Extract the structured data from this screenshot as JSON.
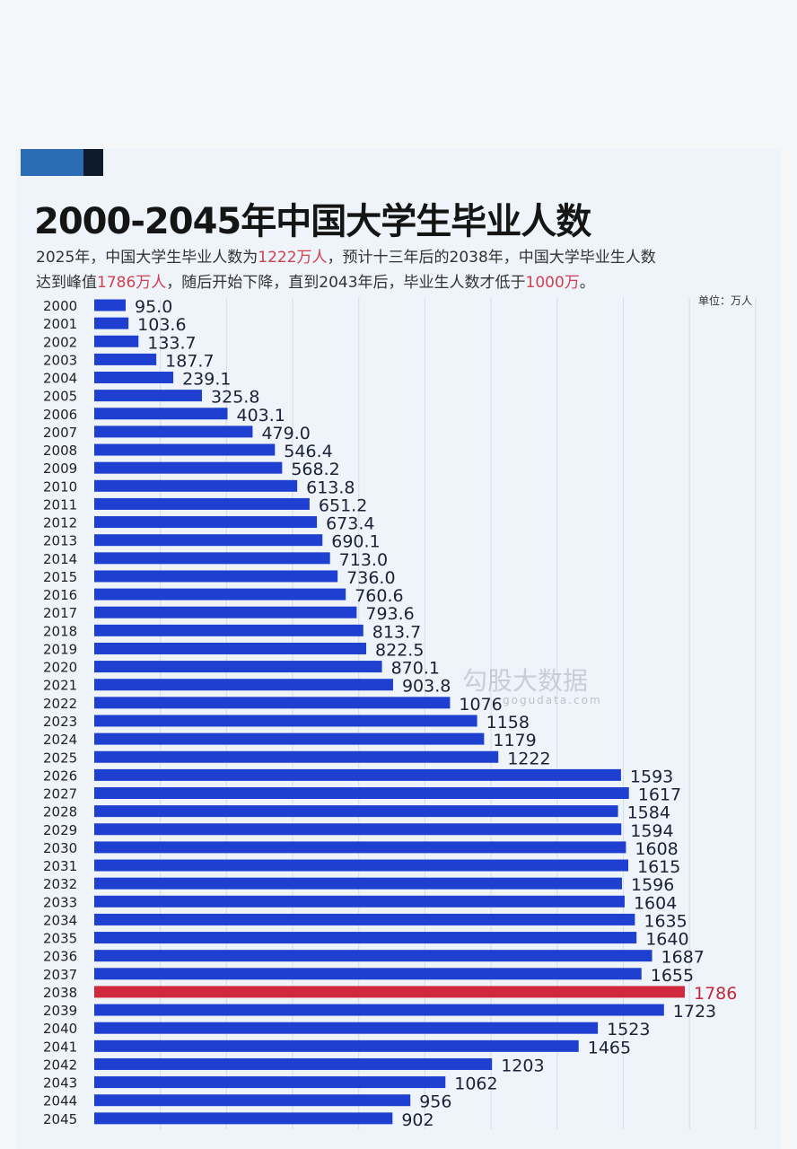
{
  "chart_data": {
    "type": "bar",
    "orientation": "horizontal",
    "title": "2000-2045年中国大学生毕业人数",
    "subtitle_parts": [
      [
        "2025年，中国大学生毕业人数为",
        "1222万人",
        "，预计十三年后的2038年，中国大学毕业生人数"
      ],
      [
        "达到峰值",
        "1786万人",
        "，随后开始下降，直到2043年后，毕业生人数才低于",
        "1000万",
        "。"
      ]
    ],
    "unit_label": "单位：万人",
    "categories": [
      "2000",
      "2001",
      "2002",
      "2003",
      "2004",
      "2005",
      "2006",
      "2007",
      "2008",
      "2009",
      "2010",
      "2011",
      "2012",
      "2013",
      "2014",
      "2015",
      "2016",
      "2017",
      "2018",
      "2019",
      "2020",
      "2021",
      "2022",
      "2023",
      "2024",
      "2025",
      "2026",
      "2027",
      "2028",
      "2029",
      "2030",
      "2031",
      "2032",
      "2033",
      "2034",
      "2035",
      "2036",
      "2037",
      "2038",
      "2039",
      "2040",
      "2041",
      "2042",
      "2043",
      "2044",
      "2045"
    ],
    "values": [
      95.0,
      103.6,
      133.7,
      187.7,
      239.1,
      325.8,
      403.1,
      479.0,
      546.4,
      568.2,
      613.8,
      651.2,
      673.4,
      690.1,
      713.0,
      736.0,
      760.6,
      793.6,
      813.7,
      822.5,
      870.1,
      903.8,
      1076,
      1158,
      1179,
      1222,
      1593,
      1617,
      1584,
      1594,
      1608,
      1615,
      1596,
      1604,
      1635,
      1640,
      1687,
      1655,
      1786,
      1723,
      1523,
      1465,
      1203,
      1062,
      956,
      902
    ],
    "labels": [
      "95.0",
      "103.6",
      "133.7",
      "187.7",
      "239.1",
      "325.8",
      "403.1",
      "479.0",
      "546.4",
      "568.2",
      "613.8",
      "651.2",
      "673.4",
      "690.1",
      "713.0",
      "736.0",
      "760.6",
      "793.6",
      "813.7",
      "822.5",
      "870.1",
      "903.8",
      "1076",
      "1158",
      "1179",
      "1222",
      "1593",
      "1617",
      "1584",
      "1594",
      "1608",
      "1615",
      "1596",
      "1604",
      "1635",
      "1640",
      "1687",
      "1655",
      "1786",
      "1723",
      "1523",
      "1465",
      "1203",
      "1062",
      "956",
      "902"
    ],
    "highlight_category": "2038",
    "xlim": [
      0,
      2000
    ],
    "grid": "vertical",
    "colors": {
      "bar": "#1e3fd0",
      "highlight": "#d0283c",
      "highlight_label": "#c0283c",
      "label": "#1a2238"
    }
  },
  "watermark": {
    "name": "勾股大数据",
    "url": "gogudata.com"
  }
}
